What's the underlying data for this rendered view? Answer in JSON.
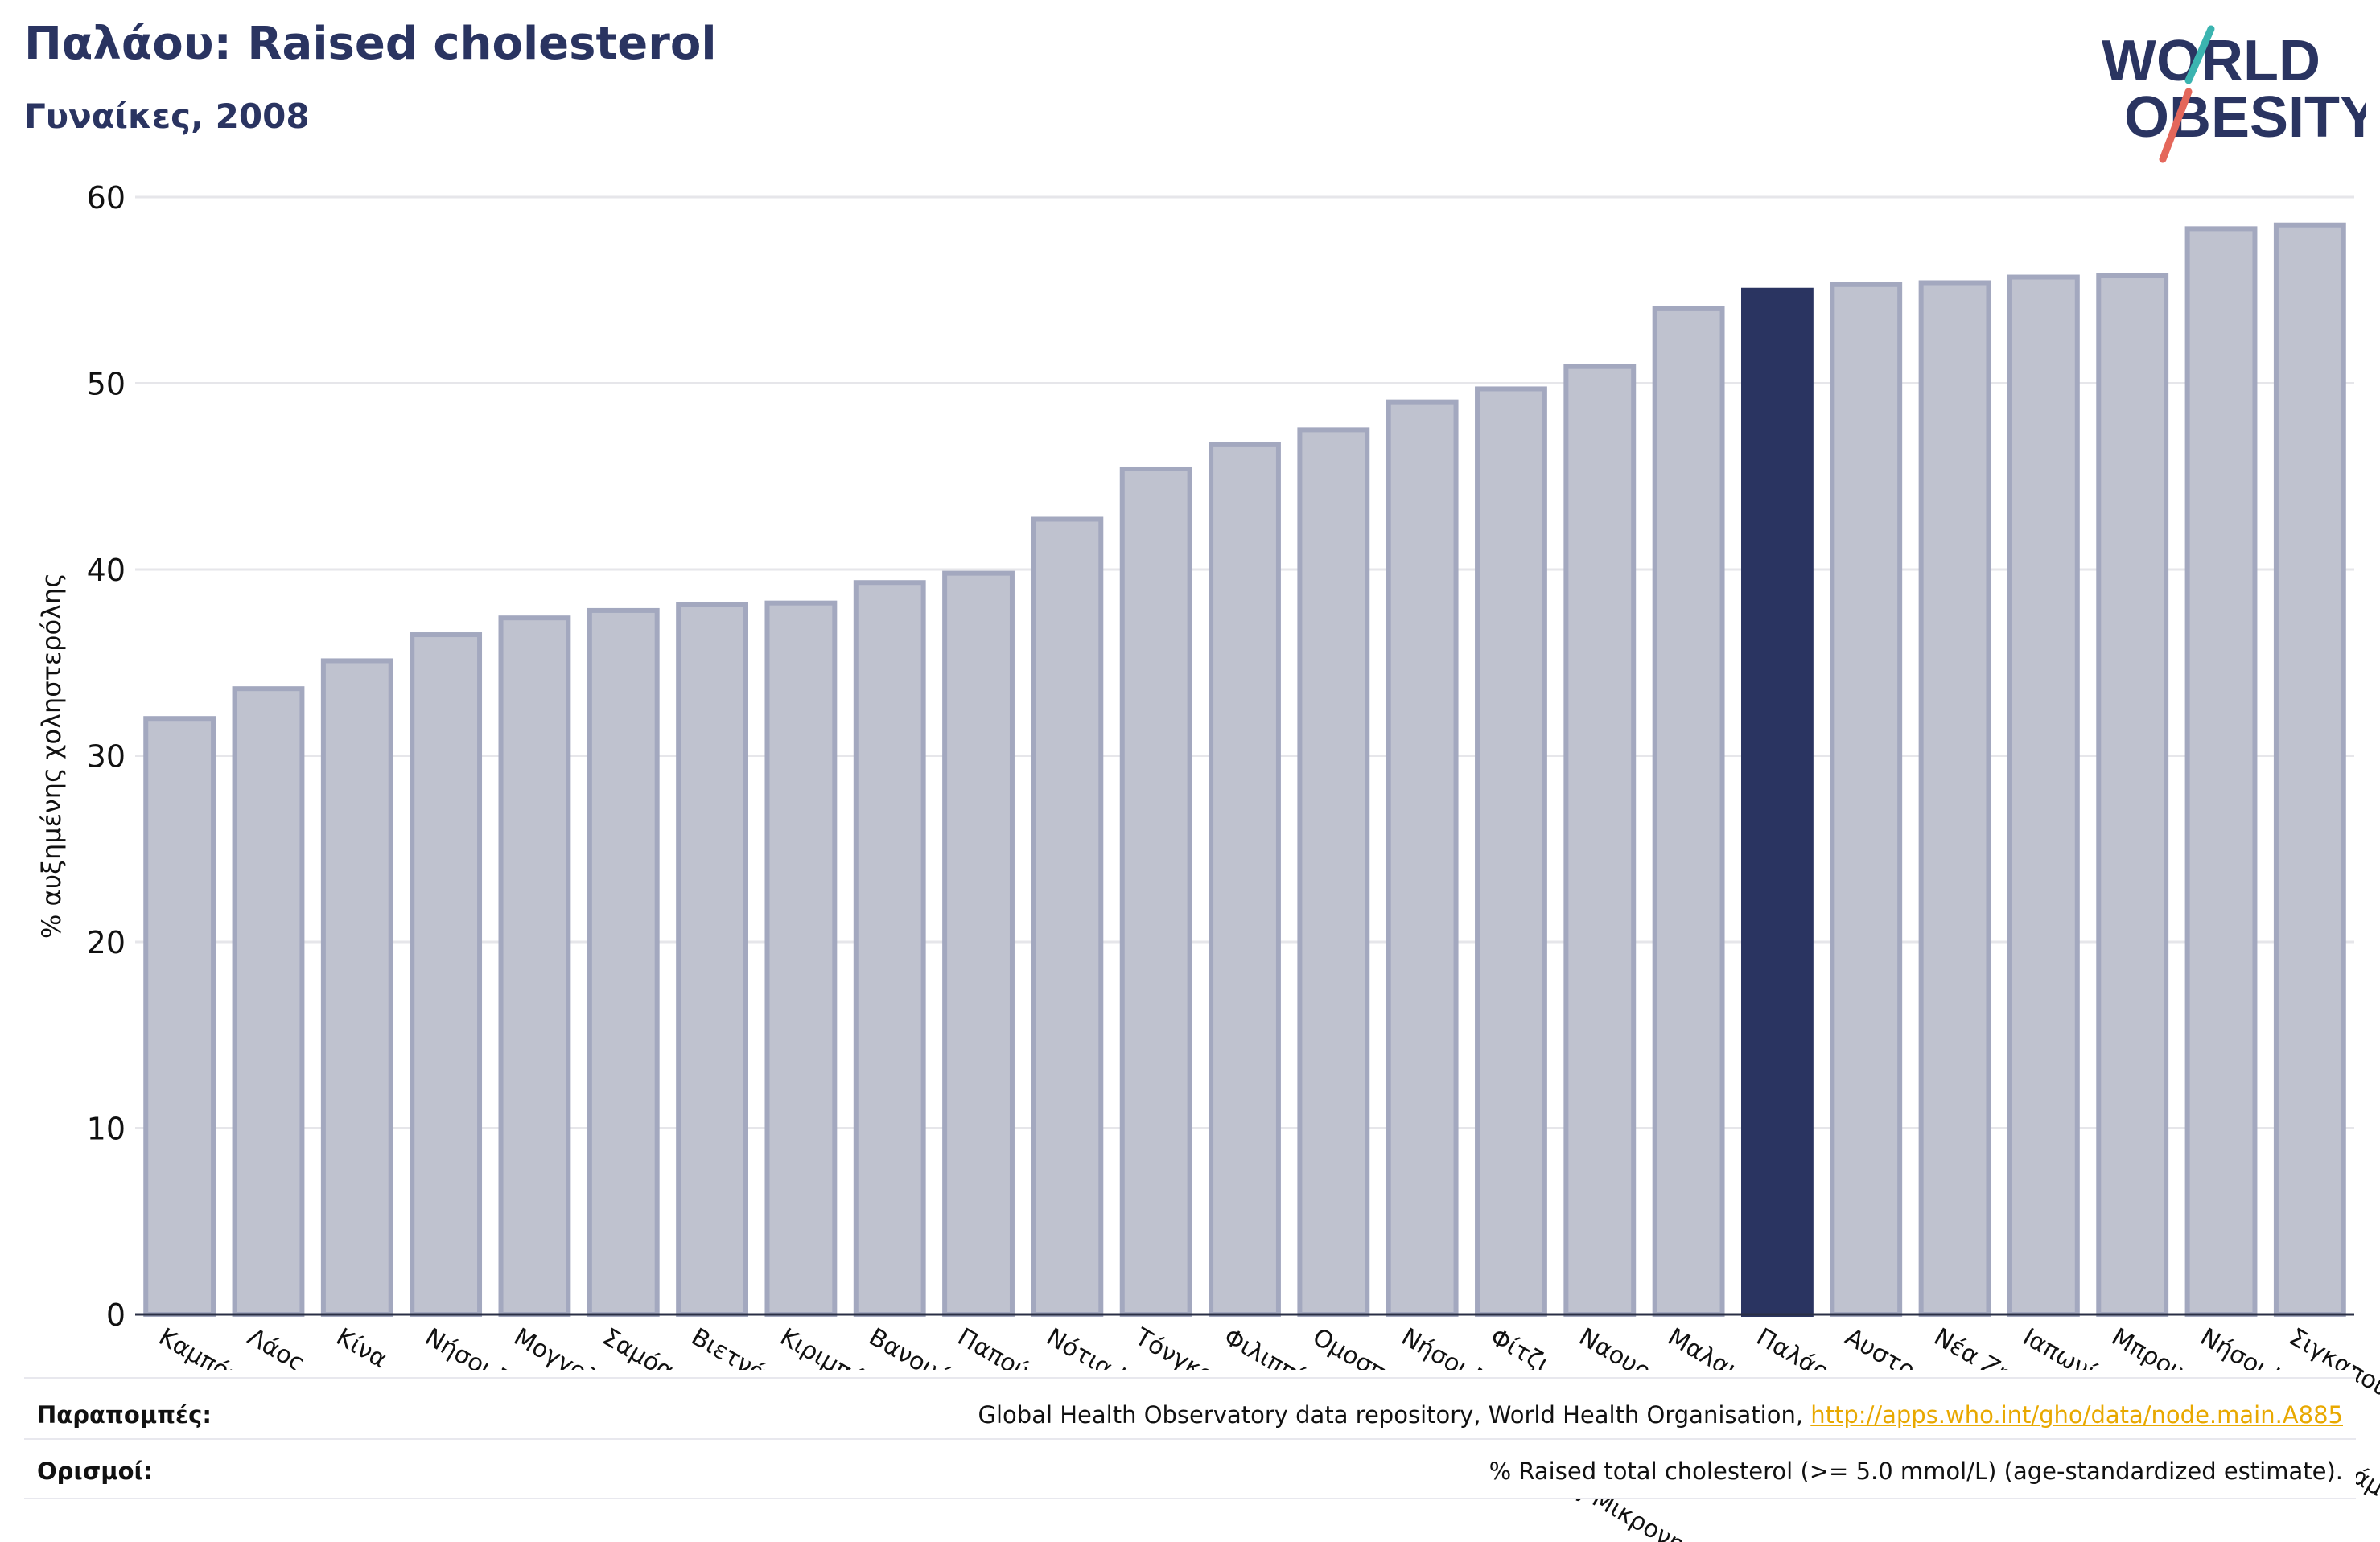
{
  "header": {
    "title": "Παλάου: Raised cholesterol",
    "subtitle": "Γυναίκες, 2008"
  },
  "logo": {
    "line1": "WORLD",
    "line2": "OBESITY"
  },
  "colors": {
    "bar": "#bfc2cf",
    "bar_border": "#a3a8bf",
    "highlight": "#2a3461",
    "text": "#111111",
    "title": "#2a3461",
    "grid": "#e6e6ea",
    "link": "#e8a800"
  },
  "chart_data": {
    "type": "bar",
    "title": "Παλάου: Raised cholesterol",
    "subtitle": "Γυναίκες, 2008",
    "ylabel": "% αυξημένης χοληστερόλης",
    "xlabel": "",
    "ylim": [
      0,
      60
    ],
    "yticks": [
      0,
      10,
      20,
      30,
      40,
      50,
      60
    ],
    "grid": true,
    "highlight": "Παλάου",
    "categories": [
      "Καμπότζη",
      "Λάος",
      "Κίνα",
      "Νήσοι Σολομώντα",
      "Μογγολία",
      "Σαμόα",
      "Βιετνάμ",
      "Κιριμπάτι",
      "Βανουάτου",
      "Παπούα Νέα Γουινέα",
      "Νότια Κορέα",
      "Τόνγκα",
      "Φιλιππίνες",
      "Ομοσπονδιακές Κρατίδιες Μικρονησίας",
      "Νήσοι Μάρσαλ",
      "Φίτζι",
      "Ναουρού",
      "Μαλαισία",
      "Παλάου",
      "Αυστραλία",
      "Νέα Ζηλανδία",
      "Ιαπωνία",
      "Μπρουνέι Νταρ-Ες-Σαλάμ",
      "Νήσοι Κουκ",
      "Σιγκαπούρη"
    ],
    "values": [
      32.0,
      33.6,
      35.1,
      36.5,
      37.4,
      37.8,
      38.1,
      38.2,
      39.3,
      39.8,
      42.7,
      45.4,
      46.7,
      47.5,
      49.0,
      49.7,
      50.9,
      54.0,
      55.0,
      55.3,
      55.4,
      55.7,
      55.8,
      58.3,
      58.5
    ]
  },
  "footer": {
    "references_label": "Παραπομπές:",
    "references_text": "Global Health Observatory data repository, World Health Organisation, ",
    "references_link": "http://apps.who.int/gho/data/node.main.A885",
    "definitions_label": "Ορισμοί:",
    "definitions_text": "% Raised total cholesterol (>= 5.0 mmol/L) (age-standardized estimate)."
  }
}
